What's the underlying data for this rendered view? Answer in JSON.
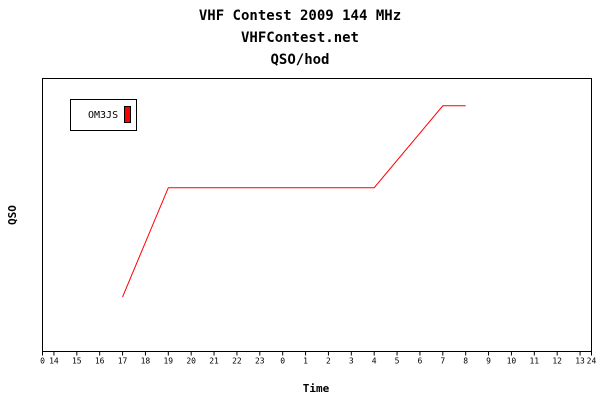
{
  "chart_data": {
    "type": "line",
    "title_lines": [
      "VHF Contest 2009 144 MHz",
      "VHFContest.net",
      "QSO/hod"
    ],
    "xlabel": "Time",
    "ylabel": "QSO",
    "x_ticks": [
      "0",
      "14",
      "15",
      "16",
      "17",
      "18",
      "19",
      "20",
      "21",
      "22",
      "23",
      "0",
      "1",
      "2",
      "3",
      "4",
      "5",
      "6",
      "7",
      "8",
      "9",
      "10",
      "11",
      "12",
      "13",
      "24"
    ],
    "xlim": [
      0,
      24
    ],
    "ylim": [
      0,
      30
    ],
    "grid": false,
    "legend_position": "top-left",
    "series": [
      {
        "name": "OM3JS",
        "color": "#ff0000",
        "points": [
          {
            "x": 3.5,
            "y": 6
          },
          {
            "x": 5.5,
            "y": 18
          },
          {
            "x": 14.5,
            "y": 18
          },
          {
            "x": 17.5,
            "y": 27
          },
          {
            "x": 18.5,
            "y": 27
          }
        ]
      }
    ]
  }
}
